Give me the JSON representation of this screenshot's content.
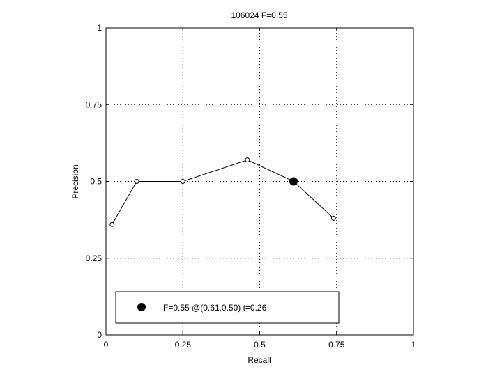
{
  "chart_data": {
    "type": "line",
    "title": "106024 F=0.55",
    "xlabel": "Recall",
    "ylabel": "Precision",
    "xlim": [
      0,
      1
    ],
    "ylim": [
      0,
      1
    ],
    "xticks": [
      0,
      0.25,
      0.5,
      0.75,
      1
    ],
    "yticks": [
      0,
      0.25,
      0.5,
      0.75,
      1
    ],
    "xtick_labels": [
      "0",
      "0.25",
      "0.5",
      "0.75",
      "1"
    ],
    "ytick_labels": [
      "0",
      "0.25",
      "0.5",
      "0.75",
      "1"
    ],
    "grid": true,
    "series": [
      {
        "x": [
          0.02,
          0.1,
          0.25,
          0.46,
          0.61,
          0.74
        ],
        "y": [
          0.36,
          0.5,
          0.5,
          0.57,
          0.5,
          0.38
        ],
        "color": "#000000",
        "marker": "open-circle"
      }
    ],
    "highlight": {
      "x": 0.61,
      "y": 0.5,
      "color": "#000000",
      "marker": "filled-circle"
    },
    "legend": {
      "position": "bottom-left",
      "label": "F=0.55 @(0.61,0.50) t=0.26"
    }
  }
}
